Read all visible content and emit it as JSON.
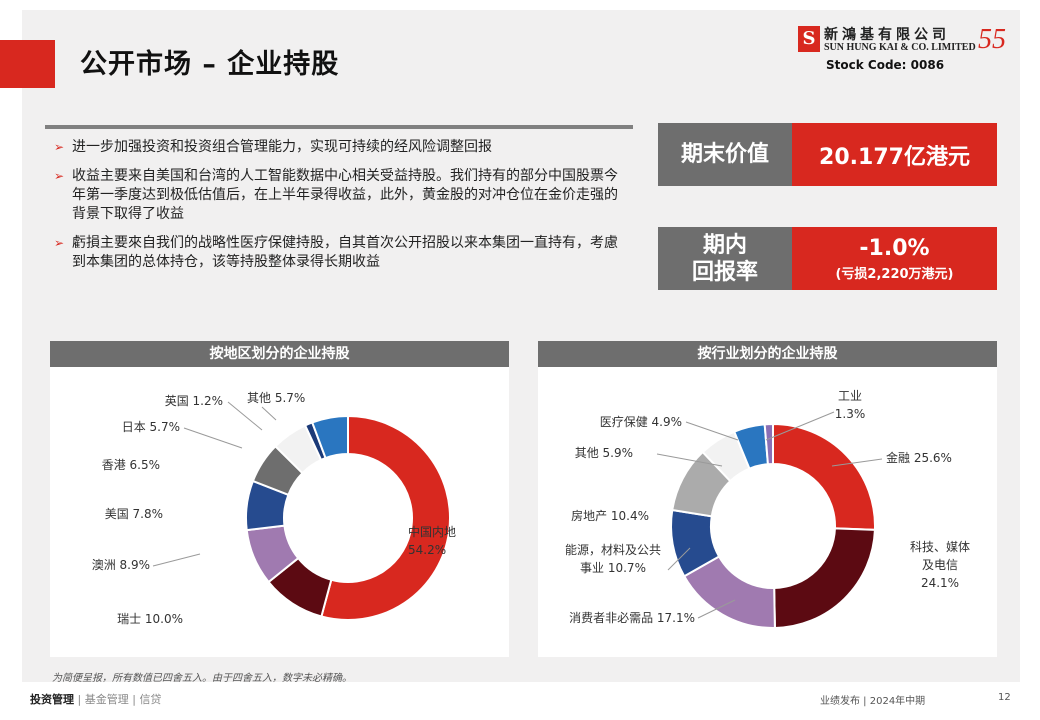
{
  "header": {
    "title": "公开市场 – 企业持股",
    "company_cn": "新鴻基有限公司",
    "company_en": "SUN HUNG KAI & CO. LIMITED",
    "logo_mark": "S",
    "anniversary": "55",
    "stock_code": "Stock Code: 0086"
  },
  "bullets": [
    "进一步加强投资和投资组合管理能力，实现可持续的经风险调整回报",
    "收益主要来自美国和台湾的人工智能数据中心相关受益持股。我们持有的部分中国股票今年第一季度达到极低估值后，在上半年录得收益，此外，黄金股的对冲仓位在金价走强的背景下取得了收益",
    "虧損主要來自我们的战略性医疗保健持股，自其首次公开招股以来本集团一直持有，考慮到本集团的总体持仓，该等持股整体录得长期收益"
  ],
  "kpis": {
    "period_value_label": "期末价值",
    "period_value": "20.177亿港元",
    "return_label_line1": "期内",
    "return_label_line2": "回报率",
    "return_value": "-1.0%",
    "return_note": "(亏损2,220万港元)"
  },
  "chart_data": [
    {
      "type": "pie",
      "title": "按地区划分的企业持股",
      "series": [
        {
          "label": "中国内地",
          "value": 54.2,
          "display": "54.2%",
          "color": "#d8281f"
        },
        {
          "label": "瑞士",
          "value": 10.0,
          "display": "10.0%",
          "color": "#5c0a12"
        },
        {
          "label": "澳洲",
          "value": 8.9,
          "display": "8.9%",
          "color": "#a07ab0"
        },
        {
          "label": "美国",
          "value": 7.8,
          "display": "7.8%",
          "color": "#264b8f"
        },
        {
          "label": "香港",
          "value": 6.5,
          "display": "6.5%",
          "color": "#6e6e6e"
        },
        {
          "label": "日本",
          "value": 5.7,
          "display": "5.7%",
          "color": "#f2f2f2"
        },
        {
          "label": "英国",
          "value": 1.2,
          "display": "1.2%",
          "color": "#1b3a78"
        },
        {
          "label": "其他",
          "value": 5.7,
          "display": "5.7%",
          "color": "#2a76c0"
        }
      ]
    },
    {
      "type": "pie",
      "title": "按行业划分的企业持股",
      "series": [
        {
          "label": "金融",
          "value": 25.6,
          "display": "25.6%",
          "color": "#d8281f"
        },
        {
          "label": "科技、媒体及电信",
          "value": 24.1,
          "display": "24.1%",
          "color": "#5c0a12"
        },
        {
          "label": "消费者非必需品",
          "value": 17.1,
          "display": "17.1%",
          "color": "#a07ab0"
        },
        {
          "label": "能源，材料及公共事业",
          "value": 10.7,
          "display": "10.7%",
          "color": "#264b8f"
        },
        {
          "label": "房地产",
          "value": 10.4,
          "display": "10.4%",
          "color": "#ababab"
        },
        {
          "label": "其他",
          "value": 5.9,
          "display": "5.9%",
          "color": "#f2f2f2"
        },
        {
          "label": "医疗保健",
          "value": 4.9,
          "display": "4.9%",
          "color": "#2a76c0"
        },
        {
          "label": "工业",
          "value": 1.3,
          "display": "1.3%",
          "color": "#8a6fb5"
        }
      ]
    }
  ],
  "footnote": "为简便呈报，所有数值已四舍五入。由于四舍五入，数字未必精确。",
  "footer": {
    "nav_active": "投资管理",
    "nav_sep1": "|",
    "nav_2": "基金管理",
    "nav_sep2": "|",
    "nav_3": "信贷",
    "right": "业绩发布 | 2024年中期",
    "page": "12"
  }
}
